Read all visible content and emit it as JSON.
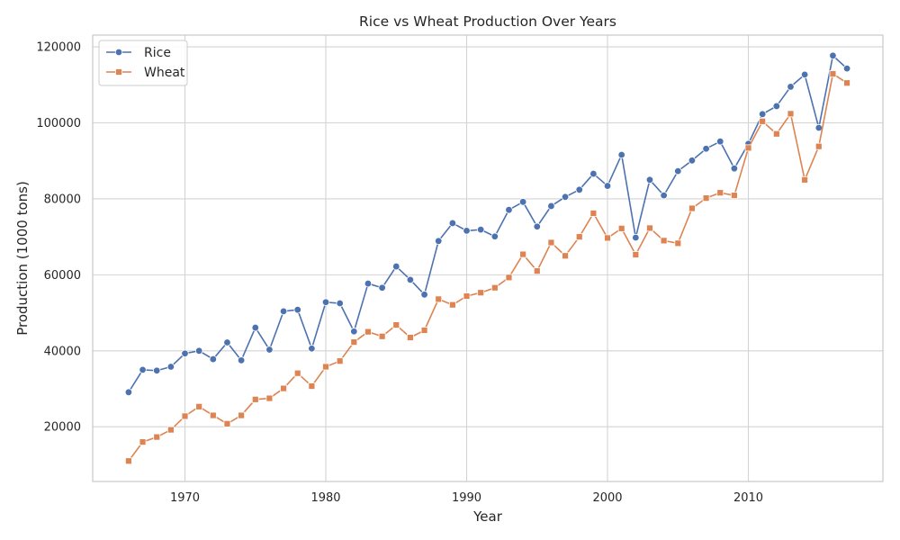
{
  "chart_data": {
    "type": "line",
    "title": "Rice vs Wheat Production Over Years",
    "xlabel": "Year",
    "ylabel": "Production (1000 tons)",
    "xlim": [
      1963.45,
      2019.55
    ],
    "ylim": [
      5600,
      123100
    ],
    "x_ticks": [
      1970,
      1980,
      1990,
      2000,
      2010
    ],
    "y_ticks": [
      20000,
      40000,
      60000,
      80000,
      100000,
      120000
    ],
    "x_tick_labels": [
      "1970",
      "1980",
      "1990",
      "2000",
      "2010"
    ],
    "y_tick_labels": [
      "20000",
      "40000",
      "60000",
      "80000",
      "100000",
      "120000"
    ],
    "grid": true,
    "legend_position": "top-left",
    "x": [
      1966,
      1967,
      1968,
      1969,
      1970,
      1971,
      1972,
      1973,
      1974,
      1975,
      1976,
      1977,
      1978,
      1979,
      1980,
      1981,
      1982,
      1983,
      1984,
      1985,
      1986,
      1987,
      1988,
      1989,
      1990,
      1991,
      1992,
      1993,
      1994,
      1995,
      1996,
      1997,
      1998,
      1999,
      2000,
      2001,
      2002,
      2003,
      2004,
      2005,
      2006,
      2007,
      2008,
      2009,
      2010,
      2011,
      2012,
      2013,
      2014,
      2015,
      2016,
      2017
    ],
    "series": [
      {
        "name": "Rice",
        "color": "#4c72b0",
        "marker": "circle",
        "values": [
          29100,
          35000,
          34800,
          35800,
          39300,
          40000,
          37800,
          42200,
          37500,
          46100,
          40300,
          50400,
          50800,
          40600,
          52800,
          52500,
          45100,
          57700,
          56600,
          62200,
          58700,
          54800,
          68900,
          73600,
          71600,
          71900,
          70100,
          77100,
          79200,
          72700,
          78100,
          80500,
          82400,
          86600,
          83400,
          91600,
          69800,
          85000,
          80900,
          87300,
          90100,
          93200,
          95100,
          88000,
          94500,
          102300,
          104400,
          109500,
          112700,
          98700,
          117700,
          114300
        ]
      },
      {
        "name": "Wheat",
        "color": "#dd8452",
        "marker": "square",
        "values": [
          11000,
          16000,
          17300,
          19200,
          22800,
          25300,
          23000,
          20800,
          23000,
          27200,
          27500,
          30100,
          34100,
          30700,
          35800,
          37300,
          42300,
          45000,
          43800,
          46800,
          43500,
          45400,
          53600,
          52100,
          54400,
          55300,
          56600,
          59300,
          65400,
          61000,
          68500,
          65000,
          70000,
          76200,
          69700,
          72200,
          65300,
          72300,
          69000,
          68300,
          77500,
          80200,
          81600,
          80900,
          93400,
          100400,
          97100,
          102400,
          85000,
          93800,
          112900,
          110500
        ]
      }
    ]
  },
  "colors": {
    "grid": "#d3d3d3",
    "spine": "#c8c8c8",
    "text": "#262626"
  }
}
